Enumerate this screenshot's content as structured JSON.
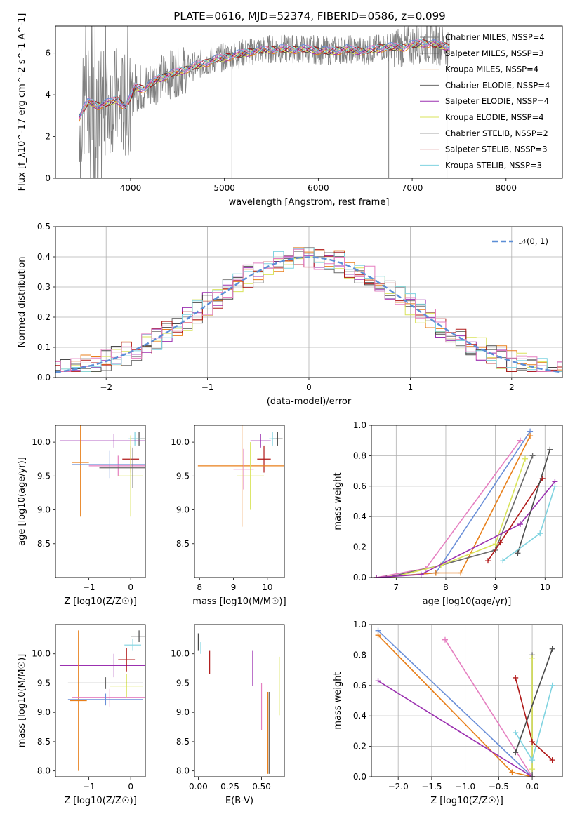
{
  "title": "PLATE=0616, MJD=52374, FIBERID=0586, z=0.099",
  "colors": {
    "grey": "#808080",
    "orange": "#e87f1a",
    "magenta": "#9b30b0",
    "yellow": "#d9e35a",
    "darkgrey": "#4a4a4a",
    "red": "#b01818",
    "cyan": "#7fd3e0",
    "blue": "#6a8fd8",
    "pink": "#e57fc0",
    "green": "#6a6a6a"
  },
  "chart_data": [
    {
      "id": "spectrum",
      "type": "line",
      "xlabel": "wavelength [Angstrom, rest frame]",
      "ylabel": "Flux [f_λ10^-17 erg cm^-2 s^-1 A^-1]",
      "xlim": [
        3200,
        8600
      ],
      "ylim": [
        0,
        7.3
      ],
      "xticks": [
        "4000",
        "5000",
        "6000",
        "7000",
        "8000"
      ],
      "yticks": [
        "0",
        "2",
        "4",
        "6"
      ],
      "xtick_values": [
        4000,
        5000,
        6000,
        7000,
        8000
      ],
      "ytick_values": [
        0,
        2,
        4,
        6
      ],
      "grid": false,
      "legend": "top-right",
      "data_points": {
        "x": [
          3450,
          3550,
          3650,
          3750,
          3850,
          3950,
          4050,
          4150,
          4300,
          4500,
          4700,
          4900,
          5100,
          5300,
          5500,
          5700,
          5900,
          6100,
          6300,
          6500,
          6700,
          6900,
          7100,
          7300,
          7400
        ],
        "y": [
          2.9,
          3.7,
          3.5,
          3.6,
          3.8,
          3.4,
          4.4,
          4.3,
          4.8,
          5.1,
          5.4,
          5.7,
          5.9,
          6.1,
          6.2,
          6.2,
          6.2,
          6.1,
          6.2,
          6.1,
          6.3,
          6.3,
          6.5,
          6.4,
          6.3
        ]
      },
      "series": [
        {
          "name": "Chabrier MILES, N_SSP=4",
          "color": "#808080"
        },
        {
          "name": "Salpeter MILES, N_SSP=3",
          "color": "#4a4a4a"
        },
        {
          "name": "Kroupa MILES, N_SSP=4",
          "color": "#e87f1a"
        },
        {
          "name": "Chabrier ELODIE, N_SSP=4",
          "color": "#6a6a6a"
        },
        {
          "name": "Salpeter ELODIE, N_SSP=4",
          "color": "#9b30b0"
        },
        {
          "name": "Kroupa ELODIE, N_SSP=4",
          "color": "#d9e35a"
        },
        {
          "name": "Chabrier STELIB, N_SSP=2",
          "color": "#4a4a4a"
        },
        {
          "name": "Salpeter STELIB, N_SSP=3",
          "color": "#b01818"
        },
        {
          "name": "Kroupa STELIB, N_SSP=3",
          "color": "#7fd3e0"
        }
      ]
    },
    {
      "id": "residuals",
      "type": "line",
      "xlabel": "(data-model)/error",
      "ylabel": "Normed distribution",
      "xlim": [
        -2.5,
        2.5
      ],
      "ylim": [
        0,
        0.5
      ],
      "xticks": [
        "−2",
        "−1",
        "0",
        "1",
        "2"
      ],
      "yticks": [
        "0.0",
        "0.1",
        "0.2",
        "0.3",
        "0.4",
        "0.5"
      ],
      "xtick_values": [
        -2,
        -1,
        0,
        1,
        2
      ],
      "ytick_values": [
        0,
        0.1,
        0.2,
        0.3,
        0.4,
        0.5
      ],
      "grid": true,
      "legend": "top-right",
      "legend_label": "𝒩(0, 1)",
      "normal": {
        "mean": 0,
        "sigma": 1
      }
    },
    {
      "id": "age-vs-z",
      "type": "scatter",
      "xlabel": "Z [log10(Z/Z☉)]",
      "ylabel": "age [log10(age/yr)]",
      "xlim": [
        -1.8,
        0.35
      ],
      "ylim": [
        8.0,
        10.25
      ],
      "xticks": [
        "−1",
        "0"
      ],
      "xtick_values": [
        -1,
        0
      ],
      "yticks": [
        "8.5",
        "9.0",
        "9.5",
        "10.0"
      ],
      "ytick_values": [
        8.5,
        9.0,
        9.5,
        10.0
      ],
      "points": [
        {
          "x": 0.2,
          "y": 10.05,
          "xerr": 0.2,
          "yerr": 0.1,
          "color": "#4a4a4a"
        },
        {
          "x": 0.1,
          "y": 10.05,
          "xerr": 0.15,
          "yerr": 0.1,
          "color": "#7fd3e0"
        },
        {
          "x": -0.4,
          "y": 10.02,
          "xerr": 1.3,
          "yerr": 0.1,
          "color": "#9b30b0"
        },
        {
          "x": 0.0,
          "y": 9.75,
          "xerr": 0.2,
          "yerr": 0.2,
          "color": "#b01818"
        },
        {
          "x": -1.2,
          "y": 9.7,
          "xerr": 0.2,
          "yerr": 0.8,
          "color": "#e87f1a"
        },
        {
          "x": -0.3,
          "y": 9.65,
          "xerr": 0.7,
          "yerr": 0.15,
          "color": "#e57fc0"
        },
        {
          "x": -0.5,
          "y": 9.67,
          "xerr": 0.9,
          "yerr": 0.2,
          "color": "#6a8fd8"
        },
        {
          "x": 0.0,
          "y": 9.5,
          "xerr": 0.3,
          "yerr": 0.6,
          "color": "#d9e35a"
        },
        {
          "x": 0.05,
          "y": 9.62,
          "xerr": 0.8,
          "yerr": 0.3,
          "color": "#6a6a6a"
        }
      ]
    },
    {
      "id": "age-vs-mass",
      "type": "scatter",
      "xlabel": "mass [log10(M/M☉)]",
      "ylabel": "",
      "xlim": [
        7.85,
        10.5
      ],
      "ylim": [
        8.0,
        10.25
      ],
      "xticks": [
        "8",
        "9",
        "10"
      ],
      "xtick_values": [
        8,
        9,
        10
      ],
      "yticks": [
        "8.5",
        "9.0",
        "9.5",
        "10.0"
      ],
      "ytick_values": [
        8.5,
        9.0,
        9.5,
        10.0
      ],
      "points": [
        {
          "x": 10.3,
          "y": 10.05,
          "xerr": 0.15,
          "yerr": 0.1,
          "color": "#4a4a4a"
        },
        {
          "x": 10.15,
          "y": 10.05,
          "xerr": 0.1,
          "yerr": 0.1,
          "color": "#7fd3e0"
        },
        {
          "x": 9.8,
          "y": 10.02,
          "xerr": 0.3,
          "yerr": 0.1,
          "color": "#9b30b0"
        },
        {
          "x": 9.9,
          "y": 9.75,
          "xerr": 0.2,
          "yerr": 0.2,
          "color": "#b01818"
        },
        {
          "x": 9.25,
          "y": 9.65,
          "xerr": 1.3,
          "yerr": 0.9,
          "color": "#e87f1a"
        },
        {
          "x": 9.5,
          "y": 9.5,
          "xerr": 0.4,
          "yerr": 0.5,
          "color": "#d9e35a"
        },
        {
          "x": 9.3,
          "y": 9.6,
          "xerr": 0.3,
          "yerr": 0.3,
          "color": "#e57fc0"
        }
      ]
    },
    {
      "id": "massweight-vs-age",
      "type": "line",
      "xlabel": "age [log10(age/yr)]",
      "ylabel": "mass weight",
      "xlim": [
        6.5,
        10.35
      ],
      "ylim": [
        0.0,
        1.0
      ],
      "xticks": [
        "7",
        "8",
        "9",
        "10"
      ],
      "xtick_values": [
        7,
        8,
        9,
        10
      ],
      "yticks": [
        "0.0",
        "0.2",
        "0.4",
        "0.6",
        "0.8",
        "1.0"
      ],
      "ytick_values": [
        0,
        0.2,
        0.4,
        0.6,
        0.8,
        1.0
      ],
      "grid": true,
      "series": [
        {
          "color": "#6a8fd8",
          "x": [
            6.6,
            7.8,
            9.7
          ],
          "y": [
            0.0,
            0.03,
            0.96
          ]
        },
        {
          "color": "#e87f1a",
          "x": [
            6.6,
            7.8,
            8.3,
            9.7
          ],
          "y": [
            0.0,
            0.03,
            0.03,
            0.93
          ]
        },
        {
          "color": "#e57fc0",
          "x": [
            6.6,
            7.6,
            9.5
          ],
          "y": [
            0.0,
            0.06,
            0.9
          ]
        },
        {
          "color": "#6a6a6a",
          "x": [
            6.8,
            7.9,
            9.0,
            9.75
          ],
          "y": [
            0.0,
            0.08,
            0.18,
            0.8
          ]
        },
        {
          "color": "#d9e35a",
          "x": [
            6.9,
            7.9,
            9.0,
            9.6
          ],
          "y": [
            0.0,
            0.08,
            0.22,
            0.78
          ]
        },
        {
          "color": "#9b30b0",
          "x": [
            6.6,
            7.5,
            9.5,
            10.2
          ],
          "y": [
            0.0,
            0.02,
            0.35,
            0.63
          ]
        },
        {
          "color": "#b01818",
          "x": [
            8.85,
            9.1,
            9.95
          ],
          "y": [
            0.11,
            0.23,
            0.65
          ]
        },
        {
          "color": "#4a4a4a",
          "x": [
            9.45,
            10.1
          ],
          "y": [
            0.16,
            0.84
          ]
        },
        {
          "color": "#7fd3e0",
          "x": [
            9.15,
            9.9,
            10.2
          ],
          "y": [
            0.11,
            0.29,
            0.6
          ]
        }
      ]
    },
    {
      "id": "mass-vs-z",
      "type": "scatter",
      "xlabel": "Z [log10(Z/Z☉)]",
      "ylabel": "mass [log10(M/M☉)]",
      "xlim": [
        -1.8,
        0.35
      ],
      "ylim": [
        7.9,
        10.5
      ],
      "xticks": [
        "−1",
        "0"
      ],
      "xtick_values": [
        -1,
        0
      ],
      "yticks": [
        "8.0",
        "8.5",
        "9.0",
        "9.5",
        "10.0"
      ],
      "ytick_values": [
        8.0,
        8.5,
        9.0,
        9.5,
        10.0
      ],
      "points": [
        {
          "x": 0.2,
          "y": 10.3,
          "xerr": 0.2,
          "yerr": 0.1,
          "color": "#4a4a4a"
        },
        {
          "x": 0.05,
          "y": 10.15,
          "xerr": 0.2,
          "yerr": 0.1,
          "color": "#7fd3e0"
        },
        {
          "x": -0.4,
          "y": 9.8,
          "xerr": 1.3,
          "yerr": 0.2,
          "color": "#9b30b0"
        },
        {
          "x": -0.1,
          "y": 9.9,
          "xerr": 0.2,
          "yerr": 0.2,
          "color": "#b01818"
        },
        {
          "x": -1.25,
          "y": 9.2,
          "xerr": 0.2,
          "yerr": 1.2,
          "color": "#e87f1a"
        },
        {
          "x": -0.5,
          "y": 9.25,
          "xerr": 0.9,
          "yerr": 0.15,
          "color": "#e57fc0"
        },
        {
          "x": -0.6,
          "y": 9.22,
          "xerr": 0.9,
          "yerr": 0.1,
          "color": "#6a8fd8"
        },
        {
          "x": -0.1,
          "y": 9.45,
          "xerr": 0.4,
          "yerr": 0.2,
          "color": "#d9e35a"
        },
        {
          "x": -0.6,
          "y": 9.5,
          "xerr": 0.9,
          "yerr": 0.1,
          "color": "#6a6a6a"
        }
      ]
    },
    {
      "id": "mass-vs-ebv",
      "type": "scatter",
      "xlabel": "E(B-V)",
      "ylabel": "",
      "xlim": [
        -0.03,
        0.68
      ],
      "ylim": [
        7.9,
        10.5
      ],
      "xticks": [
        "0.00",
        "0.25",
        "0.50"
      ],
      "xtick_values": [
        0.0,
        0.25,
        0.5
      ],
      "yticks": [
        "8.0",
        "8.5",
        "9.0",
        "9.5",
        "10.0"
      ],
      "ytick_values": [
        8.0,
        8.5,
        9.0,
        9.5,
        10.0
      ],
      "points": [
        {
          "x": 0.0,
          "y": 10.2,
          "xerr": 0,
          "yerr": 0.15,
          "color": "#4a4a4a"
        },
        {
          "x": 0.02,
          "y": 10.1,
          "xerr": 0,
          "yerr": 0.1,
          "color": "#7fd3e0"
        },
        {
          "x": 0.09,
          "y": 9.85,
          "xerr": 0,
          "yerr": 0.2,
          "color": "#b01818"
        },
        {
          "x": 0.43,
          "y": 9.75,
          "xerr": 0,
          "yerr": 0.3,
          "color": "#9b30b0"
        },
        {
          "x": 0.5,
          "y": 9.1,
          "xerr": 0,
          "yerr": 0.4,
          "color": "#e57fc0"
        },
        {
          "x": 0.55,
          "y": 8.65,
          "xerr": 0,
          "yerr": 0.7,
          "color": "#e87f1a"
        },
        {
          "x": 0.56,
          "y": 8.65,
          "xerr": 0,
          "yerr": 0.7,
          "color": "#6a6a6a"
        },
        {
          "x": 0.64,
          "y": 9.45,
          "xerr": 0,
          "yerr": 0.5,
          "color": "#d9e35a"
        }
      ]
    },
    {
      "id": "massweight-vs-z",
      "type": "line",
      "xlabel": "Z [log10(Z/Z☉)]",
      "ylabel": "mass weight",
      "xlim": [
        -2.4,
        0.45
      ],
      "ylim": [
        0.0,
        1.0
      ],
      "xticks": [
        "−2.0",
        "−1.5",
        "−1.0",
        "−0.5",
        "0.0"
      ],
      "xtick_values": [
        -2.0,
        -1.5,
        -1.0,
        -0.5,
        0.0
      ],
      "yticks": [
        "0.0",
        "0.2",
        "0.4",
        "0.6",
        "0.8",
        "1.0"
      ],
      "ytick_values": [
        0,
        0.2,
        0.4,
        0.6,
        0.8,
        1.0
      ],
      "grid": true,
      "series": [
        {
          "color": "#6a8fd8",
          "x": [
            -2.3,
            0.0
          ],
          "y": [
            0.96,
            0.0
          ]
        },
        {
          "color": "#e87f1a",
          "x": [
            -2.3,
            -0.3,
            0.0
          ],
          "y": [
            0.93,
            0.03,
            0.0
          ]
        },
        {
          "color": "#9b30b0",
          "x": [
            -2.3,
            0.0
          ],
          "y": [
            0.63,
            0.0
          ]
        },
        {
          "color": "#e57fc0",
          "x": [
            -1.3,
            0.0
          ],
          "y": [
            0.9,
            0.0
          ]
        },
        {
          "color": "#6a6a6a",
          "x": [
            0.0,
            0.0
          ],
          "y": [
            0.8,
            0.0
          ]
        },
        {
          "color": "#d9e35a",
          "x": [
            0.0,
            0.0
          ],
          "y": [
            0.78,
            0.05
          ]
        },
        {
          "color": "#b01818",
          "x": [
            -0.25,
            0.0,
            0.3
          ],
          "y": [
            0.65,
            0.23,
            0.11
          ]
        },
        {
          "color": "#4a4a4a",
          "x": [
            -0.25,
            0.3
          ],
          "y": [
            0.16,
            0.84
          ]
        },
        {
          "color": "#7fd3e0",
          "x": [
            -0.25,
            0.0,
            0.3
          ],
          "y": [
            0.29,
            0.11,
            0.6
          ]
        }
      ]
    }
  ]
}
